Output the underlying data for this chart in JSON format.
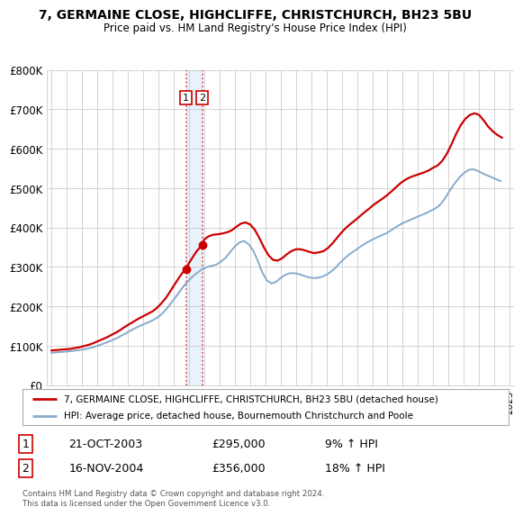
{
  "title": "7, GERMAINE CLOSE, HIGHCLIFFE, CHRISTCHURCH, BH23 5BU",
  "subtitle": "Price paid vs. HM Land Registry's House Price Index (HPI)",
  "legend_label_red": "7, GERMAINE CLOSE, HIGHCLIFFE, CHRISTCHURCH, BH23 5BU (detached house)",
  "legend_label_blue": "HPI: Average price, detached house, Bournemouth Christchurch and Poole",
  "footer": "Contains HM Land Registry data © Crown copyright and database right 2024.\nThis data is licensed under the Open Government Licence v3.0.",
  "sale1_label": "1",
  "sale1_date": "21-OCT-2003",
  "sale1_price": "£295,000",
  "sale1_hpi": "9% ↑ HPI",
  "sale2_label": "2",
  "sale2_date": "16-NOV-2004",
  "sale2_price": "£356,000",
  "sale2_hpi": "18% ↑ HPI",
  "ylim": [
    0,
    800000
  ],
  "yticks": [
    0,
    100000,
    200000,
    300000,
    400000,
    500000,
    600000,
    700000,
    800000
  ],
  "ytick_labels": [
    "£0",
    "£100K",
    "£200K",
    "£300K",
    "£400K",
    "£500K",
    "£600K",
    "£700K",
    "£800K"
  ],
  "xlim_start": 1994.7,
  "xlim_end": 2025.3,
  "sale1_x": 2003.8,
  "sale1_y": 295000,
  "sale2_x": 2004.87,
  "sale2_y": 356000,
  "red_color": "#cc0000",
  "blue_color": "#88aacc",
  "marker_color": "#cc0000",
  "vline_color": "#dd4444",
  "vline_style": "dotted",
  "shade_color": "#aaccee",
  "shade_alpha": 0.25,
  "bg_color": "#ffffff",
  "grid_color": "#cccccc",
  "hpi_x": [
    1995.0,
    1995.3,
    1995.6,
    1995.9,
    1996.2,
    1996.5,
    1996.8,
    1997.1,
    1997.4,
    1997.7,
    1998.0,
    1998.3,
    1998.6,
    1998.9,
    1999.2,
    1999.5,
    1999.8,
    2000.1,
    2000.4,
    2000.7,
    2001.0,
    2001.3,
    2001.6,
    2001.9,
    2002.2,
    2002.5,
    2002.8,
    2003.1,
    2003.4,
    2003.7,
    2004.0,
    2004.3,
    2004.6,
    2004.9,
    2005.2,
    2005.5,
    2005.8,
    2006.1,
    2006.4,
    2006.7,
    2007.0,
    2007.3,
    2007.6,
    2007.9,
    2008.2,
    2008.5,
    2008.8,
    2009.1,
    2009.4,
    2009.7,
    2010.0,
    2010.3,
    2010.6,
    2010.9,
    2011.2,
    2011.5,
    2011.8,
    2012.1,
    2012.4,
    2012.7,
    2013.0,
    2013.3,
    2013.6,
    2013.9,
    2014.2,
    2014.5,
    2014.8,
    2015.1,
    2015.4,
    2015.7,
    2016.0,
    2016.3,
    2016.6,
    2016.9,
    2017.2,
    2017.5,
    2017.8,
    2018.1,
    2018.4,
    2018.7,
    2019.0,
    2019.3,
    2019.6,
    2019.9,
    2020.2,
    2020.5,
    2020.8,
    2021.1,
    2021.4,
    2021.7,
    2022.0,
    2022.3,
    2022.6,
    2022.9,
    2023.2,
    2023.5,
    2023.8,
    2024.1,
    2024.4
  ],
  "hpi_y": [
    82000,
    83000,
    84000,
    85000,
    86000,
    87500,
    89000,
    91000,
    93000,
    96000,
    100000,
    104000,
    108000,
    113000,
    118000,
    124000,
    130000,
    137000,
    143000,
    149000,
    154000,
    159000,
    164000,
    171000,
    180000,
    192000,
    207000,
    222000,
    238000,
    254000,
    267000,
    278000,
    287000,
    295000,
    300000,
    303000,
    306000,
    314000,
    323000,
    338000,
    352000,
    362000,
    366000,
    358000,
    342000,
    316000,
    286000,
    266000,
    258000,
    262000,
    272000,
    280000,
    284000,
    284000,
    282000,
    278000,
    274000,
    272000,
    272000,
    275000,
    280000,
    288000,
    298000,
    311000,
    322000,
    332000,
    340000,
    348000,
    356000,
    363000,
    369000,
    375000,
    380000,
    385000,
    392000,
    400000,
    407000,
    413000,
    418000,
    423000,
    428000,
    433000,
    438000,
    444000,
    450000,
    460000,
    476000,
    495000,
    512000,
    527000,
    538000,
    546000,
    548000,
    544000,
    538000,
    533000,
    528000,
    523000,
    518000
  ],
  "red_x": [
    1995.0,
    1995.3,
    1995.6,
    1995.9,
    1996.2,
    1996.5,
    1996.8,
    1997.1,
    1997.4,
    1997.7,
    1998.0,
    1998.3,
    1998.6,
    1998.9,
    1999.2,
    1999.5,
    1999.8,
    2000.1,
    2000.4,
    2000.7,
    2001.0,
    2001.3,
    2001.6,
    2001.9,
    2002.2,
    2002.5,
    2002.8,
    2003.1,
    2003.4,
    2003.7,
    2003.8,
    2004.0,
    2004.5,
    2004.87,
    2005.0,
    2005.3,
    2005.6,
    2005.9,
    2006.2,
    2006.5,
    2006.8,
    2007.1,
    2007.4,
    2007.7,
    2008.0,
    2008.3,
    2008.6,
    2008.9,
    2009.2,
    2009.5,
    2009.8,
    2010.1,
    2010.4,
    2010.7,
    2011.0,
    2011.3,
    2011.6,
    2011.9,
    2012.2,
    2012.5,
    2012.8,
    2013.1,
    2013.4,
    2013.7,
    2014.0,
    2014.3,
    2014.6,
    2014.9,
    2015.2,
    2015.5,
    2015.8,
    2016.1,
    2016.4,
    2016.7,
    2017.0,
    2017.3,
    2017.6,
    2017.9,
    2018.2,
    2018.5,
    2018.8,
    2019.1,
    2019.4,
    2019.7,
    2020.0,
    2020.3,
    2020.6,
    2020.9,
    2021.2,
    2021.5,
    2021.8,
    2022.1,
    2022.4,
    2022.7,
    2023.0,
    2023.3,
    2023.6,
    2023.9,
    2024.2,
    2024.5
  ],
  "red_y": [
    88000,
    89000,
    90000,
    91000,
    92000,
    94000,
    96000,
    99000,
    102000,
    106000,
    111000,
    116000,
    121000,
    127000,
    133000,
    140000,
    148000,
    155000,
    162000,
    169000,
    175000,
    181000,
    187000,
    196000,
    208000,
    222000,
    240000,
    258000,
    276000,
    292000,
    295000,
    310000,
    340000,
    356000,
    370000,
    378000,
    382000,
    383000,
    385000,
    388000,
    393000,
    402000,
    410000,
    413000,
    408000,
    395000,
    374000,
    350000,
    330000,
    318000,
    316000,
    322000,
    332000,
    340000,
    345000,
    345000,
    342000,
    338000,
    335000,
    337000,
    340000,
    348000,
    360000,
    374000,
    388000,
    400000,
    410000,
    419000,
    429000,
    439000,
    448000,
    458000,
    466000,
    474000,
    483000,
    493000,
    504000,
    514000,
    522000,
    528000,
    532000,
    536000,
    540000,
    545000,
    552000,
    558000,
    570000,
    588000,
    612000,
    638000,
    660000,
    676000,
    686000,
    690000,
    686000,
    672000,
    656000,
    644000,
    635000,
    628000
  ]
}
